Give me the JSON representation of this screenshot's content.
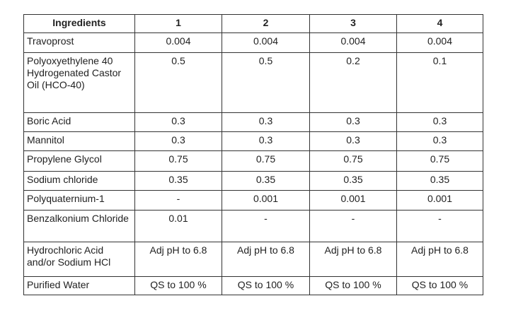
{
  "table": {
    "header": [
      "Ingredients",
      "1",
      "2",
      "3",
      "4"
    ],
    "rows": [
      [
        "Travoprost",
        "0.004",
        "0.004",
        "0.004",
        "0.004"
      ],
      [
        "Polyoxyethylene 40 Hydrogenated Castor Oil (HCO-40)",
        "0.5",
        "0.5",
        "0.2",
        "0.1"
      ],
      [
        "Boric Acid",
        "0.3",
        "0.3",
        "0.3",
        "0.3"
      ],
      [
        "Mannitol",
        "0.3",
        "0.3",
        "0.3",
        "0.3"
      ],
      [
        "Propylene Glycol",
        "0.75",
        "0.75",
        "0.75",
        "0.75"
      ],
      [
        "Sodium chloride",
        "0.35",
        "0.35",
        "0.35",
        "0.35"
      ],
      [
        "Polyquaternium-1",
        "-",
        "0.001",
        "0.001",
        "0.001"
      ],
      [
        "Benzalkonium Chloride",
        "0.01",
        "-",
        "-",
        "-"
      ],
      [
        "Hydrochloric Acid and/or Sodium HCl",
        "Adj pH to 6.8",
        "Adj pH to 6.8",
        "Adj pH to 6.8",
        "Adj pH to 6.8"
      ],
      [
        "Purified Water",
        "QS to 100 %",
        "QS to 100 %",
        "QS to 100 %",
        "QS to 100 %"
      ]
    ]
  }
}
